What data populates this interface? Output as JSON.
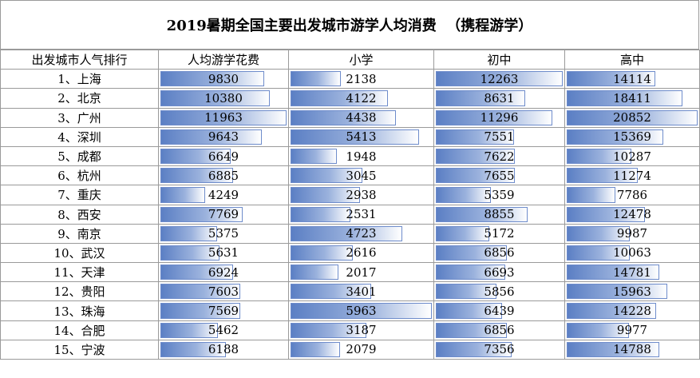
{
  "title": "2019暑期全国主要出发城市游学人均消费  （携程游学）",
  "headers": [
    "出发城市人气排行",
    "人均游学花费",
    "小学",
    "初中",
    "高中"
  ],
  "bar_color": "#5b7fc4",
  "chart_data": {
    "type": "table",
    "title": "2019暑期全国主要出发城市游学人均消费  （携程游学）",
    "columns": [
      "出发城市人气排行",
      "人均游学花费",
      "小学",
      "初中",
      "高中"
    ],
    "rows": [
      {
        "name": "1、上海",
        "values": [
          "9830",
          "2138",
          "12263",
          "14114"
        ]
      },
      {
        "name": "2、北京",
        "values": [
          "10380",
          "4122",
          "8631",
          "18411"
        ]
      },
      {
        "name": "3、广州",
        "values": [
          "11963",
          "4438",
          "11296",
          "20852"
        ]
      },
      {
        "name": "4、深圳",
        "values": [
          "9643",
          "5413",
          "7551",
          "15369"
        ]
      },
      {
        "name": "5、成都",
        "values": [
          "6649",
          "1948",
          "7622",
          "10287"
        ]
      },
      {
        "name": "6、杭州",
        "values": [
          "6885",
          "3045",
          "7655",
          "11274"
        ]
      },
      {
        "name": "7、重庆",
        "values": [
          "4249",
          "2938",
          "5359",
          "7786"
        ]
      },
      {
        "name": "8、西安",
        "values": [
          "7769",
          "2531",
          "8855",
          "12478"
        ]
      },
      {
        "name": "9、南京",
        "values": [
          "5375",
          "4723",
          "5172",
          "9987"
        ]
      },
      {
        "name": "10、武汉",
        "values": [
          "5631",
          "2616",
          "6856",
          "10063"
        ]
      },
      {
        "name": "11、天津",
        "values": [
          "6924",
          "2017",
          "6693",
          "14781"
        ]
      },
      {
        "name": "12、贵阳",
        "values": [
          "7603",
          "3401",
          "5856",
          "15963"
        ]
      },
      {
        "name": "13、珠海",
        "values": [
          "7569",
          "5963",
          "6439",
          "14228"
        ]
      },
      {
        "name": "14、合肥",
        "values": [
          "5462",
          "3187",
          "6856",
          "9977"
        ]
      },
      {
        "name": "15、宁波",
        "values": [
          "6188",
          "2079",
          "7356",
          "14788"
        ]
      }
    ]
  }
}
